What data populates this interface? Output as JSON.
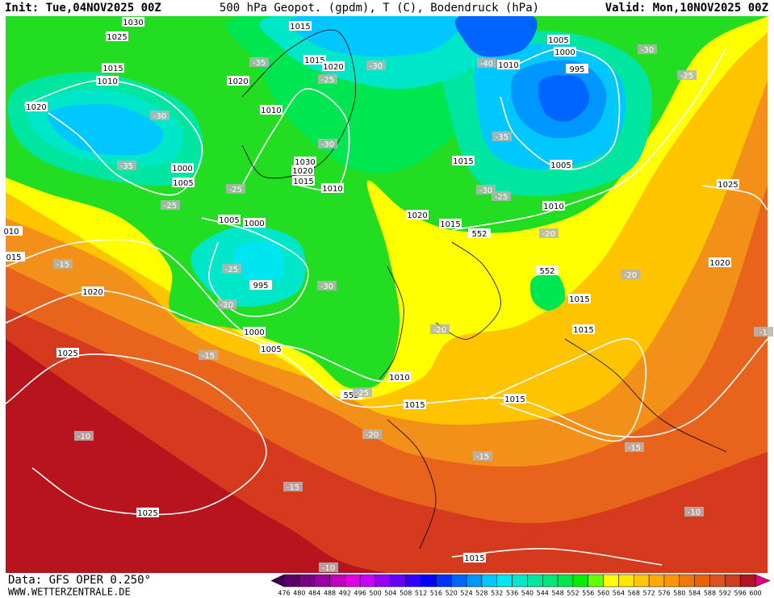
{
  "header": {
    "init": "Init: Tue,04NOV2025 00Z",
    "title": "500 hPa Geopot. (gpdm), T (C), Bodendruck (hPa)",
    "valid": "Valid: Mon,10NOV2025 00Z"
  },
  "footer": {
    "data": "Data: GFS OPER 0.250°",
    "website": "WWW.WETTERZENTRALE.DE"
  },
  "labels": {
    "isobars": [
      "1030",
      "1015",
      "1025",
      "1015",
      "1010",
      "1015",
      "1020",
      "1020",
      "1020",
      "1010",
      "1005",
      "1000",
      "995",
      "1010",
      "1030",
      "1020",
      "1015",
      "1000",
      "1005",
      "1010",
      "1015",
      "1005",
      "1025",
      "1020",
      "1015",
      "1010",
      "1005",
      "1000",
      "995",
      "1020",
      "1015",
      "1015",
      "1020",
      "1000",
      "1005",
      "1025",
      "1010",
      "1015",
      "1015",
      "1025",
      "1015",
      "010",
      "015",
      "552",
      "552",
      "552"
    ],
    "temperatures": [
      "-35",
      "-30",
      "-25",
      "-40",
      "-30",
      "-25",
      "-30",
      "-35",
      "-30",
      "-25",
      "-25",
      "-35",
      "-30",
      "-25",
      "-20",
      "-15",
      "-25",
      "-30",
      "-20",
      "-20",
      "-20",
      "-15",
      "-25",
      "-20",
      "-10",
      "-15",
      "-15",
      "-15",
      "-10",
      "-10",
      "-1"
    ]
  },
  "colorbar": {
    "values": [
      476,
      480,
      484,
      488,
      492,
      496,
      500,
      504,
      508,
      512,
      516,
      520,
      524,
      528,
      532,
      536,
      540,
      544,
      548,
      552,
      556,
      560,
      564,
      568,
      572,
      576,
      580,
      584,
      588,
      592,
      596,
      600
    ],
    "colors": [
      "#3c0050",
      "#5a0064",
      "#7a0082",
      "#9a00a0",
      "#c000c0",
      "#e000e0",
      "#c800ff",
      "#9600ff",
      "#6400ff",
      "#3200ff",
      "#0000ff",
      "#0032ff",
      "#0064ff",
      "#0096ff",
      "#00c8ff",
      "#00e6f0",
      "#00e6c8",
      "#00e6a0",
      "#00e678",
      "#00e650",
      "#00f000",
      "#64ff00",
      "#ffff00",
      "#ffe600",
      "#ffc800",
      "#ffaa00",
      "#ff9600",
      "#f07800",
      "#e86400",
      "#e05020",
      "#d03c1e",
      "#b01420",
      "#e00080"
    ]
  }
}
